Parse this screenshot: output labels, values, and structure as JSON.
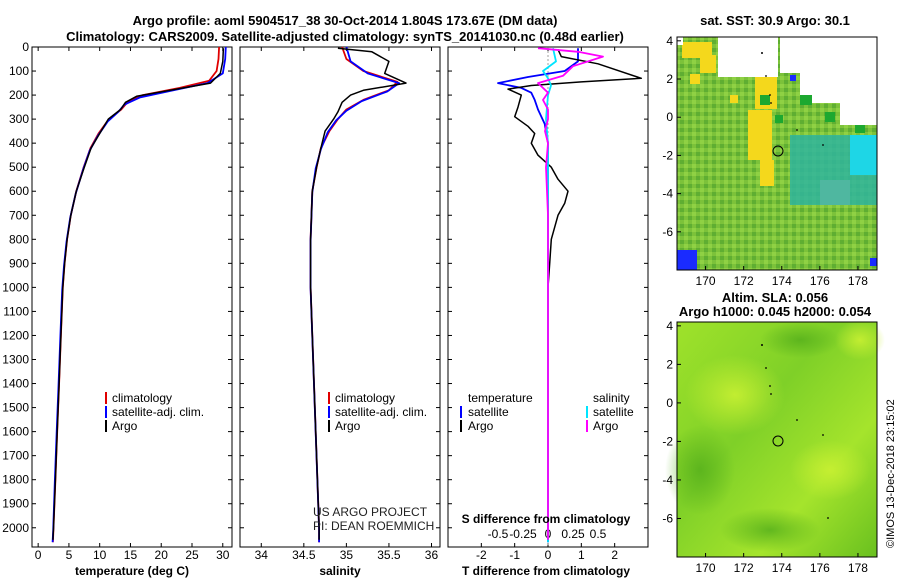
{
  "header": {
    "line1": "Argo profile: aoml 5904517_38 30-Oct-2014 1.804S 173.67E (DM data)",
    "line2": "Climatology: CARS2009. Satellite-adjusted climatology: synTS_20141030.nc (0.48d earlier)"
  },
  "colors": {
    "climatology": "#e00000",
    "satellite_adj": "#0000ff",
    "argo": "#000000",
    "sat_t": "#0000ff",
    "sat_s": "#00e5ff",
    "argo_s": "#ff00ff"
  },
  "depth_ticks": [
    "0",
    "100",
    "200",
    "300",
    "400",
    "500",
    "600",
    "700",
    "800",
    "900",
    "1000",
    "1100",
    "1200",
    "1300",
    "1400",
    "1500",
    "1600",
    "1700",
    "1800",
    "1900",
    "2000"
  ],
  "panels": {
    "temperature": {
      "xlabel": "temperature (deg C)",
      "ticks": [
        "0",
        "5",
        "10",
        "15",
        "20",
        "25",
        "30"
      ],
      "legend": [
        "climatology",
        "satellite-adj. clim.",
        "Argo"
      ]
    },
    "salinity": {
      "xlabel": "salinity",
      "ticks": [
        "34",
        "34.5",
        "35",
        "35.5",
        "36"
      ],
      "legend": [
        "climatology",
        "satellite-adj. clim.",
        "Argo"
      ],
      "credit1": "US ARGO PROJECT",
      "credit2": "PI: DEAN ROEMMICH"
    },
    "difference": {
      "xlabel": "T difference from climatology",
      "toplabel": "S difference from climatology",
      "ticks": [
        "-2",
        "-1",
        "0",
        "1",
        "2"
      ],
      "sticks": [
        "-0.5",
        "-0.25",
        "0",
        "0.25",
        "0.5"
      ],
      "legend_t_head": "temperature",
      "legend_s_head": "salinity",
      "legend_t": [
        "satellite",
        "Argo"
      ],
      "legend_s": [
        "satellite",
        "Argo"
      ]
    }
  },
  "maps": {
    "sst": {
      "title": "sat. SST: 30.9 Argo: 30.1"
    },
    "sla": {
      "title1": "Altim. SLA: 0.056",
      "title2": "Argo h1000: 0.045 h2000: 0.054"
    },
    "lon_ticks": [
      "170",
      "172",
      "174",
      "176",
      "178"
    ],
    "lat_ticks": [
      "4",
      "2",
      "0",
      "-2",
      "-4",
      "-6"
    ],
    "float_lon": 173.67,
    "float_lat": -1.804
  },
  "stamp": "©IMOS 13-Dec-2018 23:15:02",
  "chart_data": [
    {
      "type": "line",
      "panel": "temperature",
      "xlabel": "temperature (deg C)",
      "ylabel": "",
      "xlim": [
        -1,
        31.5
      ],
      "ylim": [
        2080,
        0
      ],
      "y_reversed": true,
      "series": [
        {
          "name": "climatology",
          "color": "#e00000",
          "points": [
            [
              29.4,
              0
            ],
            [
              29.3,
              50
            ],
            [
              29.0,
              100
            ],
            [
              27.8,
              140
            ],
            [
              23.0,
              170
            ],
            [
              17.0,
              200
            ],
            [
              14.5,
              230
            ],
            [
              13.5,
              260
            ],
            [
              11.5,
              300
            ],
            [
              9.8,
              360
            ],
            [
              8.5,
              420
            ],
            [
              7.4,
              500
            ],
            [
              6.2,
              600
            ],
            [
              5.3,
              700
            ],
            [
              4.7,
              800
            ],
            [
              4.3,
              900
            ],
            [
              4.0,
              1000
            ],
            [
              3.7,
              1200
            ],
            [
              3.4,
              1400
            ],
            [
              3.1,
              1600
            ],
            [
              2.8,
              1800
            ],
            [
              2.5,
              2000
            ],
            [
              2.4,
              2060
            ]
          ]
        },
        {
          "name": "satellite-adj. clim.",
          "color": "#0000ff",
          "points": [
            [
              30.5,
              0
            ],
            [
              30.4,
              50
            ],
            [
              30.0,
              110
            ],
            [
              27.5,
              150
            ],
            [
              22.0,
              180
            ],
            [
              16.5,
              210
            ],
            [
              14.0,
              240
            ],
            [
              13.0,
              270
            ],
            [
              11.3,
              310
            ],
            [
              9.7,
              370
            ],
            [
              8.4,
              430
            ],
            [
              7.3,
              510
            ],
            [
              6.1,
              610
            ],
            [
              5.2,
              710
            ],
            [
              4.6,
              810
            ],
            [
              4.2,
              910
            ],
            [
              3.9,
              1010
            ],
            [
              3.6,
              1210
            ],
            [
              3.3,
              1410
            ],
            [
              3.0,
              1610
            ],
            [
              2.7,
              1810
            ],
            [
              2.45,
              2010
            ],
            [
              2.35,
              2060
            ]
          ]
        },
        {
          "name": "Argo",
          "color": "#000000",
          "points": [
            [
              30.1,
              5
            ],
            [
              30.0,
              60
            ],
            [
              29.6,
              110
            ],
            [
              28.0,
              150
            ],
            [
              22.5,
              175
            ],
            [
              16.0,
              205
            ],
            [
              14.2,
              230
            ],
            [
              13.4,
              260
            ],
            [
              11.4,
              300
            ],
            [
              10.0,
              360
            ],
            [
              8.6,
              420
            ],
            [
              7.5,
              500
            ],
            [
              6.2,
              600
            ],
            [
              5.3,
              700
            ],
            [
              4.7,
              800
            ],
            [
              4.3,
              900
            ],
            [
              4.0,
              1000
            ],
            [
              3.7,
              1200
            ],
            [
              3.4,
              1400
            ],
            [
              3.1,
              1600
            ],
            [
              2.8,
              1800
            ],
            [
              2.5,
              2000
            ],
            [
              2.4,
              2050
            ]
          ]
        }
      ]
    },
    {
      "type": "line",
      "panel": "salinity",
      "xlabel": "salinity",
      "ylabel": "",
      "xlim": [
        33.75,
        36.1
      ],
      "ylim": [
        2080,
        0
      ],
      "y_reversed": true,
      "series": [
        {
          "name": "climatology",
          "color": "#e00000",
          "points": [
            [
              34.95,
              0
            ],
            [
              35.0,
              50
            ],
            [
              35.2,
              100
            ],
            [
              35.6,
              145
            ],
            [
              35.5,
              180
            ],
            [
              35.2,
              220
            ],
            [
              35.0,
              260
            ],
            [
              34.9,
              300
            ],
            [
              34.8,
              350
            ],
            [
              34.7,
              420
            ],
            [
              34.65,
              500
            ],
            [
              34.6,
              600
            ],
            [
              34.58,
              800
            ],
            [
              34.58,
              1000
            ],
            [
              34.6,
              1200
            ],
            [
              34.62,
              1400
            ],
            [
              34.64,
              1600
            ],
            [
              34.66,
              1800
            ],
            [
              34.68,
              2000
            ],
            [
              34.68,
              2060
            ]
          ]
        },
        {
          "name": "satellite-adj. clim.",
          "color": "#0000ff",
          "points": [
            [
              35.0,
              0
            ],
            [
              35.05,
              60
            ],
            [
              35.25,
              110
            ],
            [
              35.62,
              150
            ],
            [
              35.48,
              185
            ],
            [
              35.18,
              225
            ],
            [
              35.0,
              265
            ],
            [
              34.88,
              305
            ],
            [
              34.78,
              355
            ],
            [
              34.7,
              425
            ],
            [
              34.64,
              505
            ],
            [
              34.6,
              605
            ],
            [
              34.58,
              805
            ],
            [
              34.58,
              1005
            ],
            [
              34.6,
              1205
            ],
            [
              34.62,
              1405
            ],
            [
              34.64,
              1605
            ],
            [
              34.66,
              1805
            ],
            [
              34.68,
              2005
            ],
            [
              34.68,
              2060
            ]
          ]
        },
        {
          "name": "Argo",
          "color": "#000000",
          "points": [
            [
              34.9,
              5
            ],
            [
              35.3,
              20
            ],
            [
              35.5,
              60
            ],
            [
              35.45,
              110
            ],
            [
              35.7,
              150
            ],
            [
              35.2,
              180
            ],
            [
              35.05,
              200
            ],
            [
              34.95,
              230
            ],
            [
              34.9,
              270
            ],
            [
              34.85,
              300
            ],
            [
              34.75,
              350
            ],
            [
              34.7,
              420
            ],
            [
              34.65,
              500
            ],
            [
              34.6,
              600
            ],
            [
              34.58,
              800
            ],
            [
              34.58,
              1000
            ],
            [
              34.6,
              1200
            ],
            [
              34.62,
              1400
            ],
            [
              34.64,
              1600
            ],
            [
              34.66,
              1800
            ],
            [
              34.68,
              2000
            ],
            [
              34.68,
              2050
            ]
          ]
        }
      ]
    },
    {
      "type": "line",
      "panel": "difference",
      "xlabel": "T difference from climatology",
      "ylabel": "",
      "xlim": [
        -3,
        3
      ],
      "ylim": [
        2080,
        0
      ],
      "y_reversed": true,
      "x2label": "S difference from climatology",
      "x2lim": [
        -1.0,
        1.0
      ],
      "series": [
        {
          "name": "temperature satellite",
          "color": "#0000ff",
          "axis": "T",
          "points": [
            [
              0.9,
              5
            ],
            [
              0.9,
              60
            ],
            [
              0.5,
              100
            ],
            [
              -0.6,
              125
            ],
            [
              -1.5,
              150
            ],
            [
              -0.8,
              170
            ],
            [
              -0.5,
              190
            ],
            [
              -0.4,
              220
            ],
            [
              -0.3,
              260
            ],
            [
              -0.1,
              320
            ],
            [
              0.0,
              400
            ],
            [
              0.0,
              600
            ],
            [
              0.0,
              1000
            ],
            [
              0.0,
              1500
            ],
            [
              0.0,
              2000
            ],
            [
              0.0,
              2060
            ]
          ]
        },
        {
          "name": "temperature Argo",
          "color": "#000000",
          "axis": "T",
          "points": [
            [
              0.3,
              10
            ],
            [
              0.4,
              40
            ],
            [
              1.5,
              70
            ],
            [
              2.8,
              130
            ],
            [
              1.0,
              145
            ],
            [
              -0.5,
              160
            ],
            [
              -1.2,
              175
            ],
            [
              -0.8,
              200
            ],
            [
              -0.9,
              250
            ],
            [
              -1.0,
              290
            ],
            [
              -0.6,
              330
            ],
            [
              -0.4,
              360
            ],
            [
              -0.5,
              400
            ],
            [
              -0.3,
              450
            ],
            [
              0.1,
              500
            ],
            [
              0.3,
              550
            ],
            [
              0.6,
              600
            ],
            [
              0.5,
              650
            ],
            [
              0.3,
              700
            ],
            [
              0.1,
              800
            ],
            [
              0.05,
              900
            ],
            [
              0.0,
              1000
            ],
            [
              0.0,
              1500
            ],
            [
              0.0,
              2000
            ],
            [
              0.0,
              2050
            ]
          ]
        },
        {
          "name": "salinity satellite",
          "color": "#00e5ff",
          "axis": "S",
          "points": [
            [
              0.05,
              5
            ],
            [
              0.08,
              60
            ],
            [
              -0.05,
              100
            ],
            [
              0.0,
              130
            ],
            [
              0.03,
              160
            ],
            [
              0.0,
              200
            ],
            [
              -0.02,
              300
            ],
            [
              0.0,
              400
            ],
            [
              0.0,
              600
            ],
            [
              0.0,
              1000
            ],
            [
              0.0,
              1500
            ],
            [
              0.0,
              2000
            ],
            [
              0.0,
              2060
            ]
          ]
        },
        {
          "name": "salinity Argo",
          "color": "#ff00ff",
          "axis": "S",
          "points": [
            [
              -0.1,
              5
            ],
            [
              0.3,
              20
            ],
            [
              0.55,
              40
            ],
            [
              0.25,
              80
            ],
            [
              0.15,
              120
            ],
            [
              -0.1,
              150
            ],
            [
              0.0,
              190
            ],
            [
              -0.05,
              220
            ],
            [
              0.0,
              260
            ],
            [
              0.0,
              300
            ],
            [
              -0.03,
              350
            ],
            [
              0.0,
              400
            ],
            [
              -0.02,
              500
            ],
            [
              0.0,
              700
            ],
            [
              0.0,
              1000
            ],
            [
              0.0,
              1500
            ],
            [
              0.0,
              2000
            ],
            [
              0.0,
              2050
            ]
          ]
        }
      ]
    },
    {
      "type": "heatmap",
      "panel": "sst-map",
      "title": "sat. SST: 30.9 Argo: 30.1",
      "xlim": [
        168.5,
        179
      ],
      "ylim": [
        -8,
        4.2
      ]
    },
    {
      "type": "heatmap",
      "panel": "sla-map",
      "title": "Altim. SLA: 0.056",
      "xlim": [
        168.5,
        179
      ],
      "ylim": [
        -8,
        4.2
      ]
    }
  ]
}
